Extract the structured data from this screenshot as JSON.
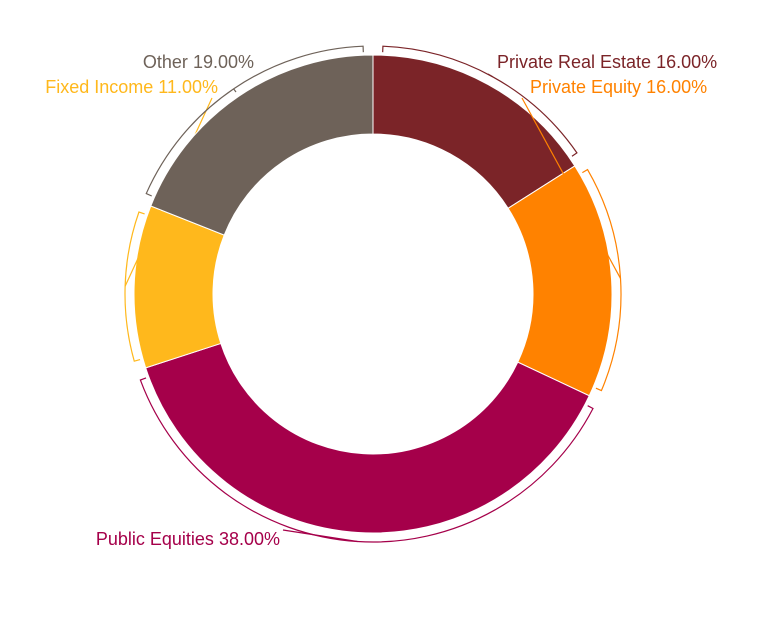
{
  "chart_data": {
    "type": "donut",
    "categories": [
      "Private Real Estate",
      "Private Equity",
      "Public Equities",
      "Fixed Income",
      "Other"
    ],
    "values": [
      16,
      16,
      38,
      11,
      19
    ],
    "value_labels": [
      "16.00%",
      "16.00%",
      "38.00%",
      "11.00%",
      "19.00%"
    ],
    "colors": [
      "#7b2428",
      "#ff8200",
      "#a5004a",
      "#ffb81c",
      "#6e6259"
    ]
  }
}
